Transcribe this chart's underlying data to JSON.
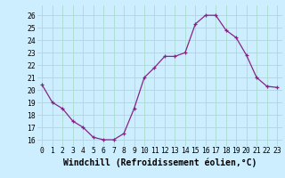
{
  "x": [
    0,
    1,
    2,
    3,
    4,
    5,
    6,
    7,
    8,
    9,
    10,
    11,
    12,
    13,
    14,
    15,
    16,
    17,
    18,
    19,
    20,
    21,
    22,
    23
  ],
  "y": [
    20.4,
    19.0,
    18.5,
    17.5,
    17.0,
    16.2,
    16.0,
    16.0,
    16.5,
    18.5,
    21.0,
    21.8,
    22.7,
    22.7,
    23.0,
    25.3,
    26.0,
    26.0,
    24.8,
    24.2,
    22.8,
    21.0,
    20.3,
    20.2
  ],
  "xlabel": "Windchill (Refroidissement éolien,°C)",
  "ylim": [
    15.5,
    26.8
  ],
  "xlim": [
    -0.5,
    23.5
  ],
  "yticks": [
    16,
    17,
    18,
    19,
    20,
    21,
    22,
    23,
    24,
    25,
    26
  ],
  "xticks": [
    0,
    1,
    2,
    3,
    4,
    5,
    6,
    7,
    8,
    9,
    10,
    11,
    12,
    13,
    14,
    15,
    16,
    17,
    18,
    19,
    20,
    21,
    22,
    23
  ],
  "line_color": "#882288",
  "marker": "+",
  "bg_color": "#cceeff",
  "grid_color": "#aaddcc",
  "tick_label_fontsize": 5.8,
  "xlabel_fontsize": 7.0
}
